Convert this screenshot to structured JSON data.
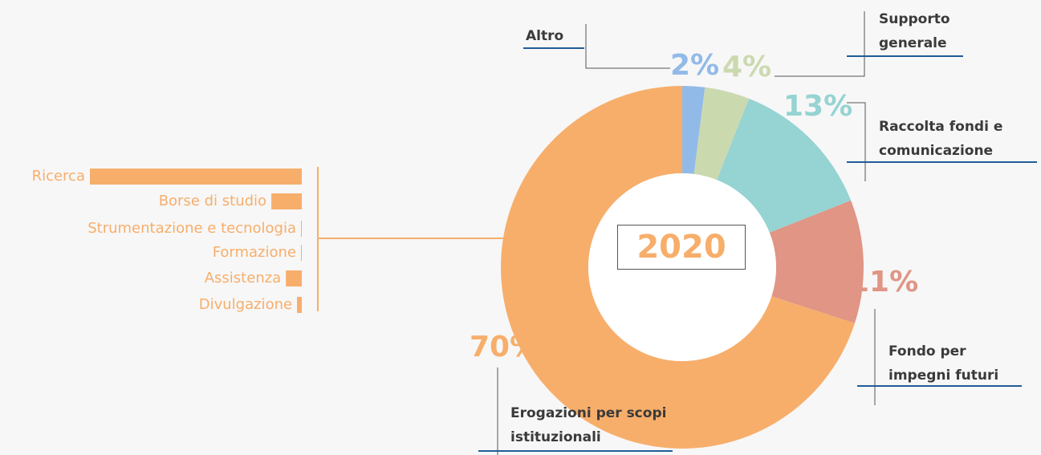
{
  "chart_data": [
    {
      "type": "donut",
      "center_label": "2020",
      "categories": [
        "Altro",
        "Supporto generale",
        "Raccolta fondi e comunicazione",
        "Fondo per impegni futuri",
        "Erogazioni per scopi istituzionali"
      ],
      "values": [
        2,
        4,
        13,
        11,
        70
      ],
      "value_labels": [
        "2%",
        "4%",
        "13%",
        "11%",
        "70%"
      ],
      "colors": [
        "#92bae8",
        "#cbd9af",
        "#96d3d3",
        "#e09585",
        "#f7ae6b"
      ]
    },
    {
      "type": "hbar",
      "categories": [
        "Ricerca",
        "Borse di studio",
        "Strumentazione e tecnologia",
        "Formazione",
        "Assistenza",
        "Divulgazione"
      ],
      "values": [
        80,
        11.5,
        0.3,
        0.3,
        6,
        1.8
      ],
      "color": "#f7ae6b"
    }
  ]
}
